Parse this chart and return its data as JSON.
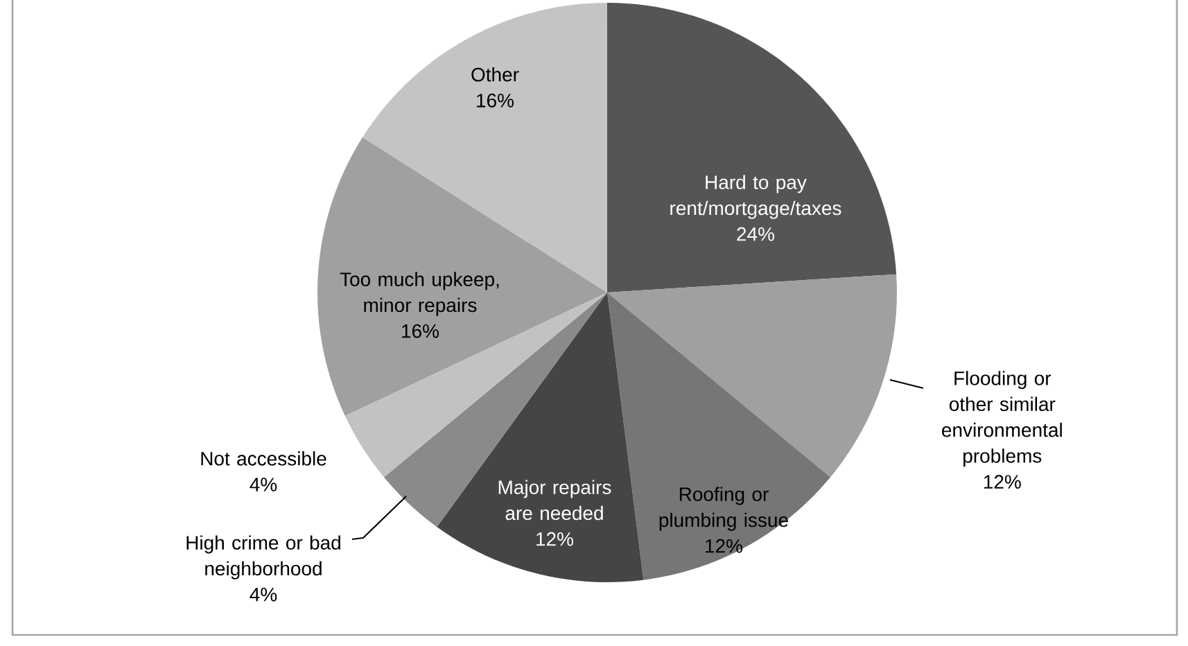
{
  "chart_data": {
    "type": "pie",
    "categories": [
      "Hard to pay rent/mortgage/taxes",
      "Flooding or other similar environmental problems",
      "Roofing or plumbing issue",
      "Major repairs are needed",
      "High crime or bad neighborhood",
      "Not accessible",
      "Too much upkeep, minor repairs",
      "Other"
    ],
    "values": [
      24,
      12,
      12,
      12,
      4,
      4,
      16,
      16
    ],
    "colors": [
      "#555555",
      "#a0a0a0",
      "#767676",
      "#454545",
      "#8a8a8a",
      "#c2c2c2",
      "#a0a0a0",
      "#c4c4c4"
    ],
    "value_labels": [
      "24%",
      "12%",
      "12%",
      "12%",
      "4%",
      "4%",
      "16%",
      "16%"
    ]
  }
}
